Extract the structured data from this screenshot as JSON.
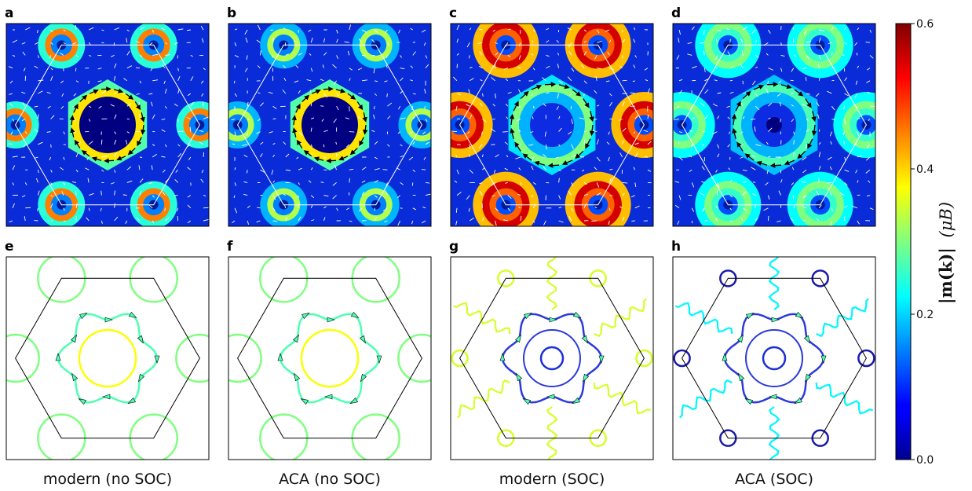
{
  "chart_data": {
    "type": "heatmap",
    "panels": [
      {
        "id": "a",
        "label": "a",
        "variant": "map",
        "model": "modern",
        "soc": false,
        "peak": 0.45
      },
      {
        "id": "b",
        "label": "b",
        "variant": "map",
        "model": "ACA",
        "soc": false,
        "peak": 0.33
      },
      {
        "id": "c",
        "label": "c",
        "variant": "map",
        "model": "modern",
        "soc": true,
        "peak": 0.55
      },
      {
        "id": "d",
        "label": "d",
        "variant": "map",
        "model": "ACA",
        "soc": true,
        "peak": 0.3
      },
      {
        "id": "e",
        "label": "e",
        "variant": "fermi",
        "model": "modern",
        "soc": false,
        "peak": 0.3
      },
      {
        "id": "f",
        "label": "f",
        "variant": "fermi",
        "model": "ACA",
        "soc": false,
        "peak": 0.3
      },
      {
        "id": "g",
        "label": "g",
        "variant": "fermi",
        "model": "modern",
        "soc": true,
        "peak": 0.35
      },
      {
        "id": "h",
        "label": "h",
        "variant": "fermi",
        "model": "ACA",
        "soc": true,
        "peak": 0.22
      }
    ],
    "column_captions": [
      "modern (no SOC)",
      "ACA (no SOC)",
      "modern (SOC)",
      "ACA (SOC)"
    ],
    "colorbar": {
      "colormap": "jet",
      "range": [
        0.0,
        0.6
      ],
      "ticks": [
        0.0,
        0.2,
        0.4,
        0.6
      ],
      "tick_labels": [
        "0.0",
        "0.2",
        "0.4",
        "0.6"
      ],
      "label_main": "|m(k)|",
      "label_unit": "(μB)"
    },
    "brillouin_zone_color_map": "#ffffff",
    "brillouin_zone_color_fermi": "#000000"
  }
}
